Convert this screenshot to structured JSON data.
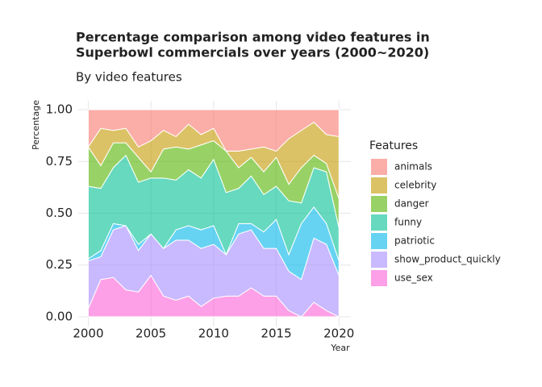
{
  "chart_data": {
    "type": "stacked_area",
    "title": [
      "Percentage comparison among video features in",
      "Superbowl commercials over years (2000~2020)"
    ],
    "subtitle": "By video features",
    "x_label": "Year",
    "y_label": "Percentage",
    "legend_title": "Features",
    "legend": "right",
    "grid": true,
    "x": [
      2000,
      2001,
      2002,
      2003,
      2004,
      2005,
      2006,
      2007,
      2008,
      2009,
      2010,
      2011,
      2012,
      2013,
      2014,
      2015,
      2016,
      2017,
      2018,
      2019,
      2020
    ],
    "xlim": [
      1999.2,
      2020.95
    ],
    "xticks": [
      2000,
      2005,
      2010,
      2015,
      2020
    ],
    "ylim": [
      -0.047,
      1.043
    ],
    "yticks": [
      {
        "value": 0,
        "label": "0.00"
      },
      {
        "value": 0.25,
        "label": "0.25"
      },
      {
        "value": 0.5,
        "label": "0.50"
      },
      {
        "value": 0.75,
        "label": "0.75"
      },
      {
        "value": 1,
        "label": "1.00"
      }
    ],
    "series": [
      {
        "name": "use_sex",
        "color": "#FB61D7",
        "values": [
          0.04,
          0.18,
          0.19,
          0.13,
          0.12,
          0.2,
          0.1,
          0.08,
          0.1,
          0.05,
          0.09,
          0.1,
          0.1,
          0.14,
          0.1,
          0.1,
          0.03,
          0.0,
          0.07,
          0.03,
          0.0
        ]
      },
      {
        "name": "show_product_quickly",
        "color": "#A58AFF",
        "values": [
          0.23,
          0.11,
          0.23,
          0.31,
          0.2,
          0.2,
          0.23,
          0.29,
          0.27,
          0.28,
          0.26,
          0.2,
          0.3,
          0.28,
          0.23,
          0.23,
          0.19,
          0.18,
          0.31,
          0.32,
          0.2
        ]
      },
      {
        "name": "patriotic",
        "color": "#00B6EB",
        "values": [
          0.01,
          0.03,
          0.03,
          0.0,
          0.03,
          0.0,
          0.0,
          0.05,
          0.07,
          0.09,
          0.09,
          0.0,
          0.05,
          0.03,
          0.08,
          0.14,
          0.08,
          0.27,
          0.15,
          0.1,
          0.07
        ]
      },
      {
        "name": "funny",
        "color": "#00C094",
        "values": [
          0.35,
          0.3,
          0.27,
          0.34,
          0.3,
          0.27,
          0.34,
          0.24,
          0.27,
          0.25,
          0.32,
          0.3,
          0.17,
          0.23,
          0.18,
          0.16,
          0.26,
          0.1,
          0.19,
          0.25,
          0.16
        ]
      },
      {
        "name": "danger",
        "color": "#53B400",
        "values": [
          0.19,
          0.11,
          0.12,
          0.06,
          0.12,
          0.03,
          0.14,
          0.16,
          0.1,
          0.16,
          0.09,
          0.2,
          0.1,
          0.09,
          0.11,
          0.14,
          0.08,
          0.17,
          0.06,
          0.04,
          0.14
        ]
      },
      {
        "name": "celebrity",
        "color": "#C49A00",
        "values": [
          0.0,
          0.18,
          0.06,
          0.07,
          0.05,
          0.15,
          0.09,
          0.05,
          0.12,
          0.05,
          0.06,
          0.0,
          0.08,
          0.04,
          0.12,
          0.03,
          0.22,
          0.18,
          0.16,
          0.14,
          0.3
        ]
      },
      {
        "name": "animals",
        "color": "#F8766D",
        "values": [
          0.18,
          0.09,
          0.1,
          0.09,
          0.18,
          0.15,
          0.1,
          0.13,
          0.07,
          0.12,
          0.09,
          0.2,
          0.2,
          0.19,
          0.18,
          0.2,
          0.14,
          0.1,
          0.06,
          0.12,
          0.13
        ]
      }
    ]
  }
}
